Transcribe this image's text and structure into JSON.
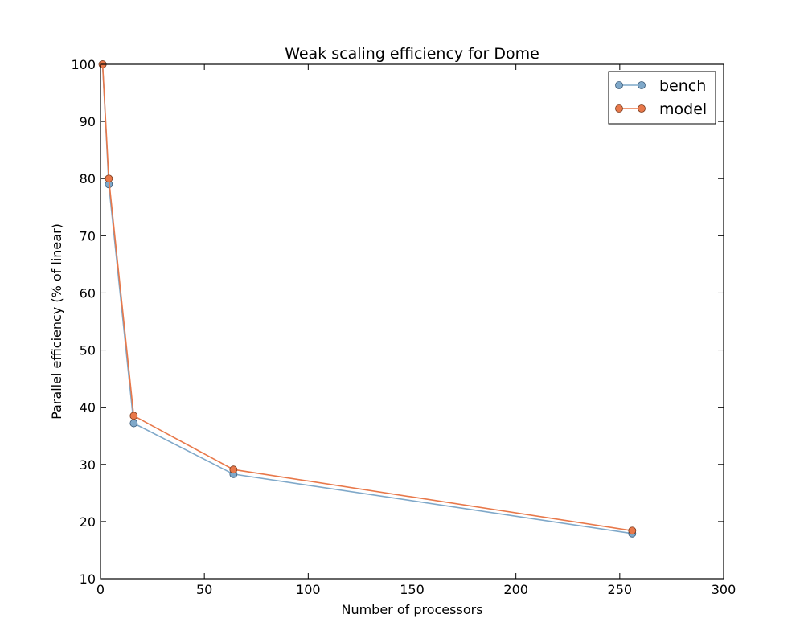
{
  "chart_data": {
    "type": "line",
    "title": "Weak scaling efficiency for Dome",
    "xlabel": "Number of processors",
    "ylabel": "Parallel efficiency (% of linear)",
    "xlim": [
      0,
      300
    ],
    "ylim": [
      10,
      100
    ],
    "xticks": [
      0,
      50,
      100,
      150,
      200,
      250,
      300
    ],
    "yticks": [
      10,
      20,
      30,
      40,
      50,
      60,
      70,
      80,
      90,
      100
    ],
    "grid": false,
    "legend_position": "top-right",
    "x": [
      1,
      4,
      16,
      64,
      256
    ],
    "series": [
      {
        "name": "bench",
        "color": "#7fa8c9",
        "marker_edge": "#3a5a78",
        "values": [
          100,
          79,
          37.2,
          28.3,
          17.9
        ]
      },
      {
        "name": "model",
        "color": "#e8784a",
        "marker_edge": "#7a3a1c",
        "values": [
          100,
          80,
          38.5,
          29.1,
          18.4
        ]
      }
    ]
  }
}
